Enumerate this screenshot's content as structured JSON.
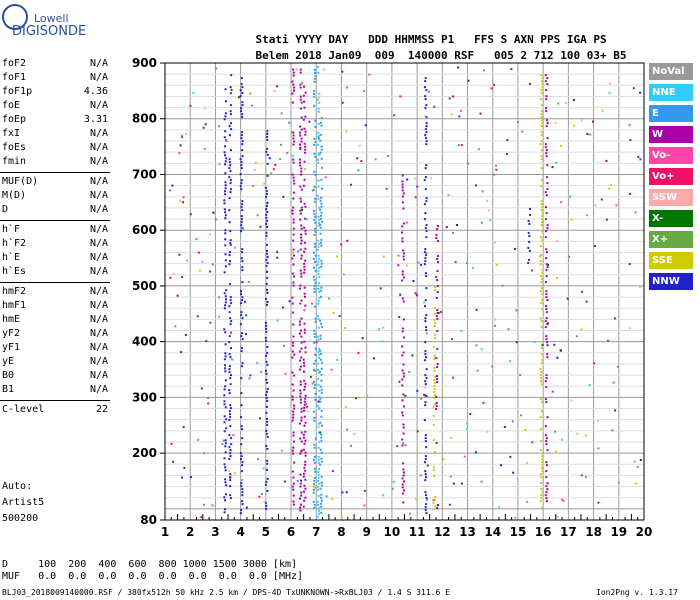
{
  "logo": {
    "top": "Lowell",
    "bottom": "DIGISONDE"
  },
  "header": {
    "line1": [
      "Stati",
      "YYYY",
      "DAY",
      "DDD",
      "HHMMSS",
      "P1",
      "FFS",
      "S",
      "AXN",
      "PPS",
      "IGA",
      "PS"
    ],
    "line2": [
      "Belem",
      "2018",
      "Jan09",
      "009",
      "140000",
      "RSF",
      "005",
      "2",
      "712",
      "100",
      "03+",
      "B5"
    ]
  },
  "params": [
    {
      "group": 1,
      "rows": [
        [
          "foF2",
          "N/A"
        ],
        [
          "foF1",
          "N/A"
        ],
        [
          "foF1p",
          "4.36"
        ],
        [
          "foE",
          "N/A"
        ],
        [
          "foEp",
          "3.31"
        ],
        [
          "fxI",
          "N/A"
        ],
        [
          "foEs",
          "N/A"
        ],
        [
          "fmin",
          "N/A"
        ]
      ]
    },
    {
      "group": 2,
      "rows": [
        [
          "MUF(D)",
          "N/A"
        ],
        [
          "M(D)",
          "N/A"
        ],
        [
          "D",
          "N/A"
        ]
      ]
    },
    {
      "group": 3,
      "rows": [
        [
          "h`F",
          "N/A"
        ],
        [
          "h`F2",
          "N/A"
        ],
        [
          "h`E",
          "N/A"
        ],
        [
          "h`Es",
          "N/A"
        ]
      ]
    },
    {
      "group": 4,
      "rows": [
        [
          "hmF2",
          "N/A"
        ],
        [
          "hmF1",
          "N/A"
        ],
        [
          "hmE",
          "N/A"
        ],
        [
          "yF2",
          "N/A"
        ],
        [
          "yF1",
          "N/A"
        ],
        [
          "yE",
          "N/A"
        ],
        [
          "B0",
          "N/A"
        ],
        [
          "B1",
          "N/A"
        ]
      ]
    },
    {
      "group": 5,
      "rows": [
        [
          "C-level",
          "22"
        ]
      ]
    }
  ],
  "auto": {
    "label": "Auto:",
    "name": "Artist5",
    "code": "500200"
  },
  "legend": [
    {
      "label": "NoVal",
      "color": "#999999"
    },
    {
      "label": "NNE",
      "color": "#33ccff"
    },
    {
      "label": "E",
      "color": "#3399ee"
    },
    {
      "label": "W",
      "color": "#aa00aa"
    },
    {
      "label": "Vo-",
      "color": "#ff44aa"
    },
    {
      "label": "Vo+",
      "color": "#ee1166"
    },
    {
      "label": "SSW",
      "color": "#ffaaaa"
    },
    {
      "label": "X-",
      "color": "#007700"
    },
    {
      "label": "X+",
      "color": "#66aa44"
    },
    {
      "label": "SSE",
      "color": "#cccc00"
    },
    {
      "label": "NNW",
      "color": "#2222cc"
    }
  ],
  "bottom": {
    "row1": "D     100  200  400  600  800 1000 1500 3000 [km]",
    "row2": "MUF   0.0  0.0  0.0  0.0  0.0  0.0  0.0  0.0 [MHz]",
    "footer_left": "BLJ03_2018009140000.RSF / 380fx512h 50 kHz 2.5 km / DPS-4D TxUNKNOWN->RxBLJ03 / 1.4 S 311.6 E",
    "footer_right": "Ion2Png v. 1.3.17"
  },
  "chart_data": {
    "type": "scatter",
    "xlim": [
      1,
      20
    ],
    "ylim": [
      80,
      900
    ],
    "x_ticks": [
      "1",
      "2",
      "3",
      "4",
      "5",
      "6",
      "7",
      "8",
      "9",
      "10",
      "11",
      "12",
      "13",
      "14",
      "15",
      "16",
      "17",
      "18",
      "19",
      "20"
    ],
    "y_ticks": [
      "80",
      "200",
      "300",
      "400",
      "500",
      "600",
      "700",
      "800",
      "900"
    ],
    "grid": true,
    "columns": [
      {
        "x": 3.35,
        "color": "#2222cc",
        "from": 90,
        "to": 860
      },
      {
        "x": 3.55,
        "color": "#2222cc",
        "from": 100,
        "to": 880
      },
      {
        "x": 4.0,
        "color": "#2222cc",
        "from": 90,
        "to": 880
      },
      {
        "x": 5.0,
        "color": "#2222cc",
        "from": 100,
        "to": 780
      },
      {
        "x": 6.05,
        "color": "#aa00aa",
        "from": 95,
        "to": 890
      },
      {
        "x": 6.35,
        "color": "#aa00aa",
        "from": 95,
        "to": 890
      },
      {
        "x": 6.5,
        "color": "#aa00aa",
        "from": 95,
        "to": 870
      },
      {
        "x": 6.9,
        "color": "#3399ee",
        "from": 85,
        "to": 895
      },
      {
        "x": 7.05,
        "color": "#33ccff",
        "from": 85,
        "to": 895
      },
      {
        "x": 7.15,
        "color": "#3399ee",
        "from": 85,
        "to": 800
      },
      {
        "x": 10.4,
        "color": "#aa00aa",
        "from": 100,
        "to": 700
      },
      {
        "x": 11.3,
        "color": "#2222cc",
        "from": 90,
        "to": 880
      },
      {
        "x": 11.65,
        "color": "#cccc00",
        "from": 90,
        "to": 500
      },
      {
        "x": 11.75,
        "color": "#aa00aa",
        "from": 280,
        "to": 620
      },
      {
        "x": 15.9,
        "color": "#cccc00",
        "from": 100,
        "to": 880
      },
      {
        "x": 16.1,
        "color": "#aa00aa",
        "from": 100,
        "to": 880
      },
      {
        "x": 15.4,
        "color": "#2222cc",
        "from": 540,
        "to": 640
      }
    ]
  }
}
